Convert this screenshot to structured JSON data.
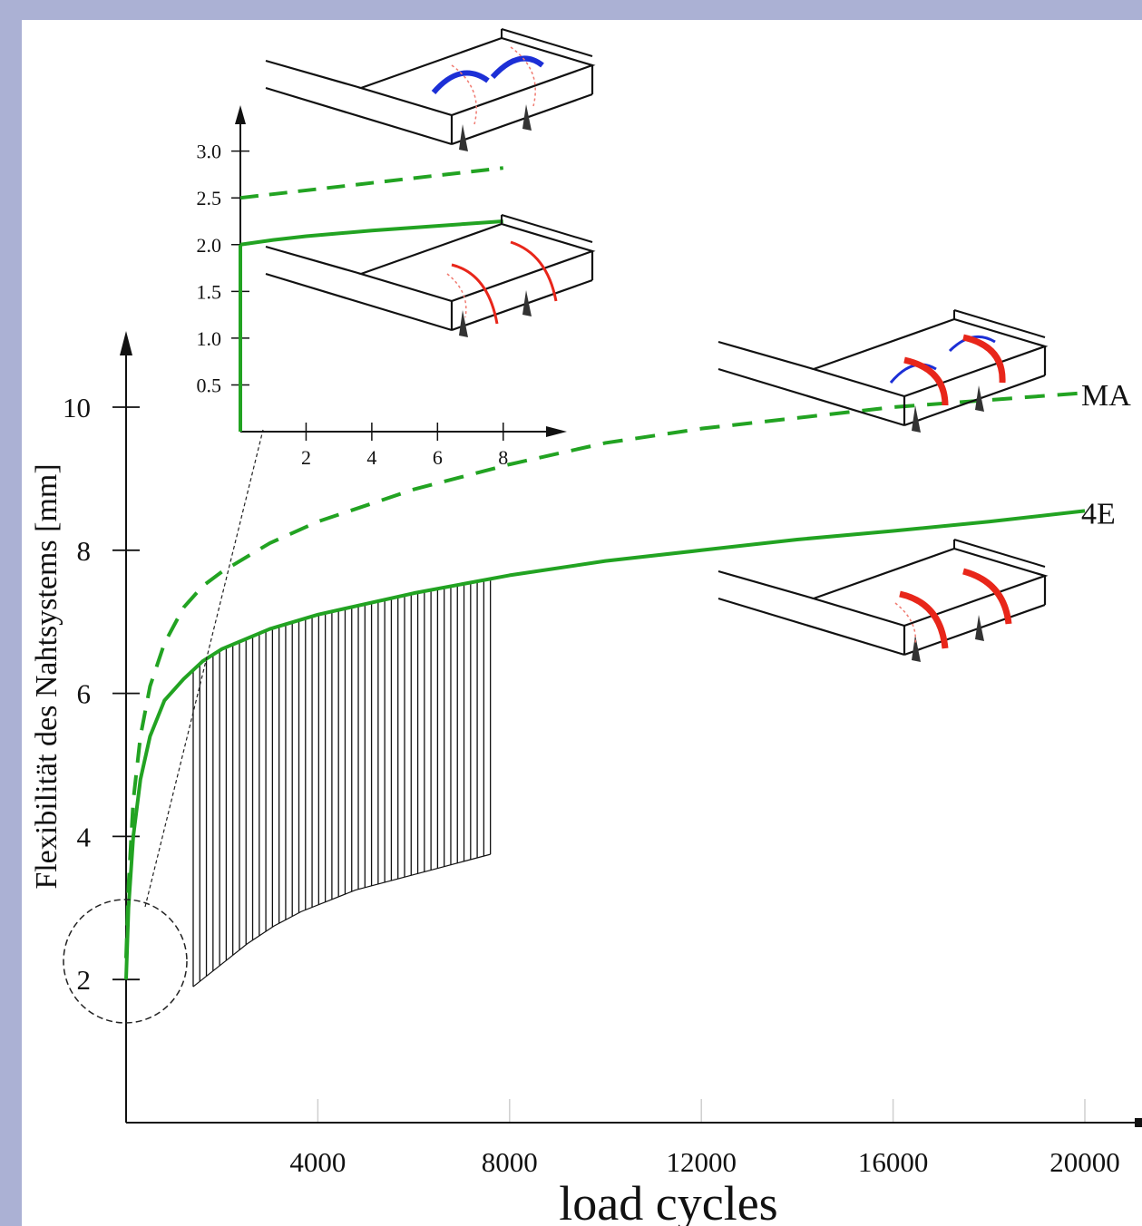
{
  "colors": {
    "background": "#abb1d4",
    "panel": "#ffffff",
    "series_green": "#22a322",
    "hatch": "#111111",
    "arc_red": "#e8261a",
    "arc_blue": "#1c2fd6"
  },
  "chart_data": [
    {
      "type": "line",
      "title": "",
      "xlabel": "load cycles",
      "ylabel": "Flexibilität des Nahtsystems [mm]",
      "xlim": [
        0,
        20000
      ],
      "ylim": [
        0,
        10
      ],
      "x_ticks": [
        "4000",
        "8000",
        "12000",
        "16000",
        "20000"
      ],
      "y_ticks": [
        "2",
        "4",
        "6",
        "8",
        "10"
      ],
      "grid": "vertical lines at x ticks",
      "series": [
        {
          "name": "MA",
          "style": "dashed",
          "x": [
            0,
            50,
            150,
            300,
            500,
            800,
            1200,
            1600,
            2000,
            3000,
            4000,
            6000,
            8000,
            10000,
            12000,
            14000,
            16000,
            18000,
            20000
          ],
          "y": [
            2.3,
            3.3,
            4.5,
            5.4,
            6.1,
            6.7,
            7.2,
            7.5,
            7.7,
            8.1,
            8.4,
            8.85,
            9.2,
            9.5,
            9.7,
            9.85,
            10.0,
            10.1,
            10.2
          ]
        },
        {
          "name": "4E",
          "style": "solid",
          "x": [
            0,
            50,
            150,
            300,
            500,
            800,
            1200,
            1600,
            2000,
            3000,
            4000,
            6000,
            8000,
            10000,
            12000,
            14000,
            16000,
            18000,
            20000
          ],
          "y": [
            2.0,
            3.0,
            4.0,
            4.8,
            5.4,
            5.9,
            6.2,
            6.45,
            6.62,
            6.9,
            7.1,
            7.4,
            7.65,
            7.85,
            8.0,
            8.15,
            8.27,
            8.4,
            8.55
          ]
        }
      ],
      "hatched_band": {
        "x_range": [
          1400,
          7600
        ],
        "lower_y": [
          1.9,
          2.2,
          2.5,
          2.75,
          2.95,
          3.1,
          3.25,
          3.35,
          3.45,
          3.55,
          3.65,
          3.75
        ],
        "upper_series": "4E"
      },
      "annotations": [
        "zoom circle around origin",
        "tooth-section sketches with red and blue suture arcs"
      ]
    },
    {
      "type": "line",
      "title": "",
      "xlabel": "",
      "ylabel": "",
      "xlim": [
        0,
        9
      ],
      "ylim": [
        0,
        3.2
      ],
      "x_ticks": [
        "2",
        "4",
        "6",
        "8"
      ],
      "y_ticks": [
        "0.5",
        "1.0",
        "1.5",
        "2.0",
        "2.5",
        "3.0"
      ],
      "series": [
        {
          "style": "dashed",
          "x": [
            0,
            2,
            4,
            6,
            8
          ],
          "y": [
            2.5,
            2.58,
            2.66,
            2.74,
            2.82
          ]
        },
        {
          "style": "solid",
          "x": [
            0,
            1,
            2,
            4,
            6,
            8
          ],
          "y": [
            2.0,
            2.05,
            2.09,
            2.15,
            2.2,
            2.25
          ]
        }
      ]
    }
  ]
}
